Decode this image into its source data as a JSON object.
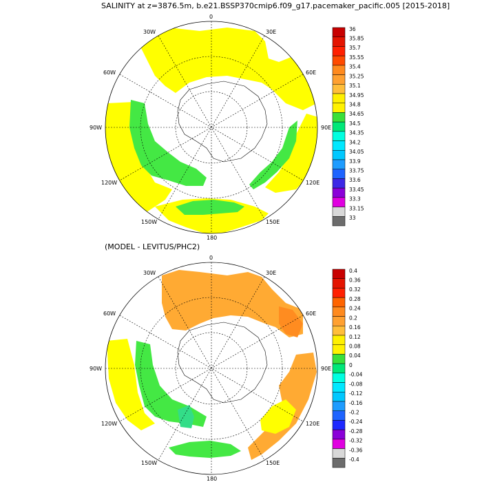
{
  "top_panel": {
    "title": "SALINITY at z=3876.5m, b.e21.BSSP370cmip6.f09_g17.pacemaker_pacific.005 [2015-2018]",
    "longitude_labels": [
      "0",
      "30E",
      "60E",
      "90E",
      "120E",
      "150E",
      "180",
      "150W",
      "120W",
      "90W",
      "60W",
      "30W"
    ],
    "colorbar": {
      "labels": [
        "36",
        "35.85",
        "35.7",
        "35.55",
        "35.4",
        "35.25",
        "35.1",
        "34.95",
        "34.8",
        "34.65",
        "34.5",
        "34.35",
        "34.2",
        "34.05",
        "33.9",
        "33.75",
        "33.6",
        "33.45",
        "33.3",
        "33.15",
        "33"
      ],
      "colors": [
        "#c80000",
        "#e41400",
        "#ff2000",
        "#ff4a00",
        "#ff8a1e",
        "#ffa030",
        "#ffbe3a",
        "#fff000",
        "#fff200",
        "#3ae03a",
        "#00e878",
        "#00ffe0",
        "#00e8ff",
        "#00c8ff",
        "#1e9cff",
        "#1e64ff",
        "#3c28e6",
        "#8a00d8",
        "#e000e0",
        "#d8d8d8",
        "#6c6c6c"
      ]
    }
  },
  "bottom_panel": {
    "title": "(MODEL - LEVITUS/PHC2)",
    "longitude_labels": [
      "0",
      "30E",
      "60E",
      "90E",
      "120E",
      "150E",
      "180",
      "150W",
      "120W",
      "90W",
      "60W",
      "30W"
    ],
    "colorbar": {
      "labels": [
        "0.4",
        "0.36",
        "0.32",
        "0.28",
        "0.24",
        "0.2",
        "0.16",
        "0.12",
        "0.08",
        "0.04",
        "0",
        "-0.04",
        "-0.08",
        "-0.12",
        "-0.16",
        "-0.2",
        "-0.24",
        "-0.28",
        "-0.32",
        "-0.36",
        "-0.4"
      ],
      "colors": [
        "#c80000",
        "#e41400",
        "#ff2000",
        "#ff6400",
        "#ff8a1e",
        "#ffa030",
        "#ffbe3a",
        "#fff000",
        "#fff200",
        "#3ae03a",
        "#00e878",
        "#00ffe0",
        "#00e8ff",
        "#00c8ff",
        "#1e9cff",
        "#1e64ff",
        "#1e28ff",
        "#8a00d8",
        "#e000e0",
        "#d8d8d8",
        "#6c6c6c"
      ]
    }
  },
  "map_colors": {
    "yellow": "#ffff00",
    "green": "#44e844",
    "orange": "#ffaa33",
    "dark_orange": "#ff8c20",
    "mint": "#33dd88",
    "land": "#ffffff"
  }
}
